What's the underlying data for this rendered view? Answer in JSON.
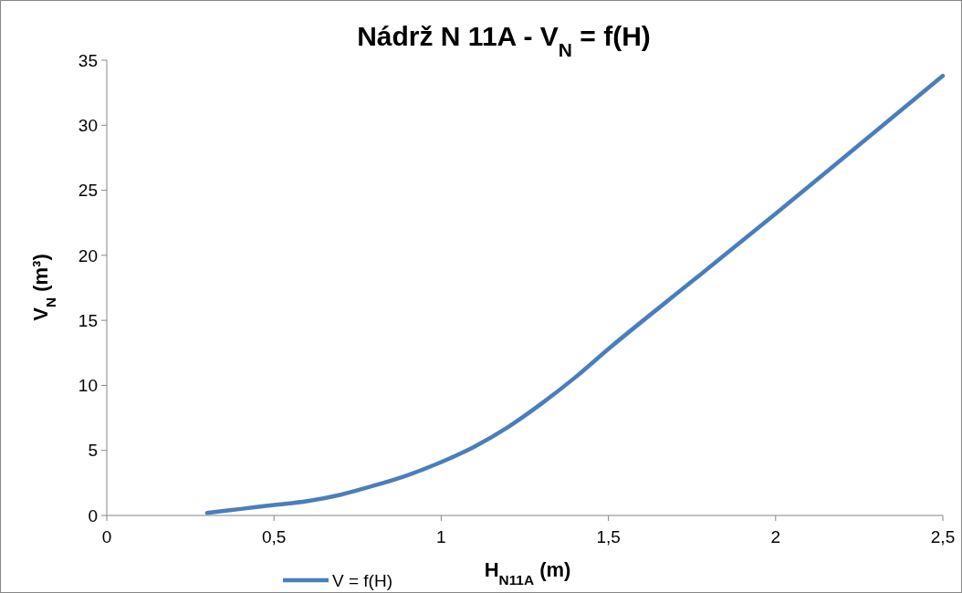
{
  "chart_data": {
    "type": "line",
    "title": "Nádrž N 11A - V$_{N}$ = f(H)",
    "xlabel": "H$_{N11A}$ (m)",
    "ylabel": "V$_{N}$ (m³)",
    "x": [
      0.3,
      0.4,
      0.5,
      0.6,
      0.7,
      0.8,
      0.9,
      1.0,
      1.1,
      1.2,
      1.3,
      1.4,
      1.5,
      1.75,
      2.0,
      2.25,
      2.5
    ],
    "series": [
      {
        "name": "V = f(H)",
        "color": "#4a7ebb",
        "values": [
          0.2,
          0.5,
          0.8,
          1.1,
          1.6,
          2.3,
          3.1,
          4.1,
          5.3,
          6.8,
          8.6,
          10.6,
          12.8,
          18.0,
          23.2,
          28.5,
          33.8
        ]
      }
    ],
    "xlim": [
      0,
      2.5
    ],
    "xticks": [
      0,
      {
        "value": 0.5,
        "label": "0,5"
      },
      1,
      {
        "value": 1.5,
        "label": "1,5"
      },
      2,
      {
        "value": 2.5,
        "label": "2,5"
      }
    ],
    "ylim": [
      0,
      35
    ],
    "yticks": [
      0,
      5,
      10,
      15,
      20,
      25,
      30,
      35
    ],
    "grid": false,
    "legend": "bottom",
    "marker": "none",
    "line_style": "solid"
  }
}
